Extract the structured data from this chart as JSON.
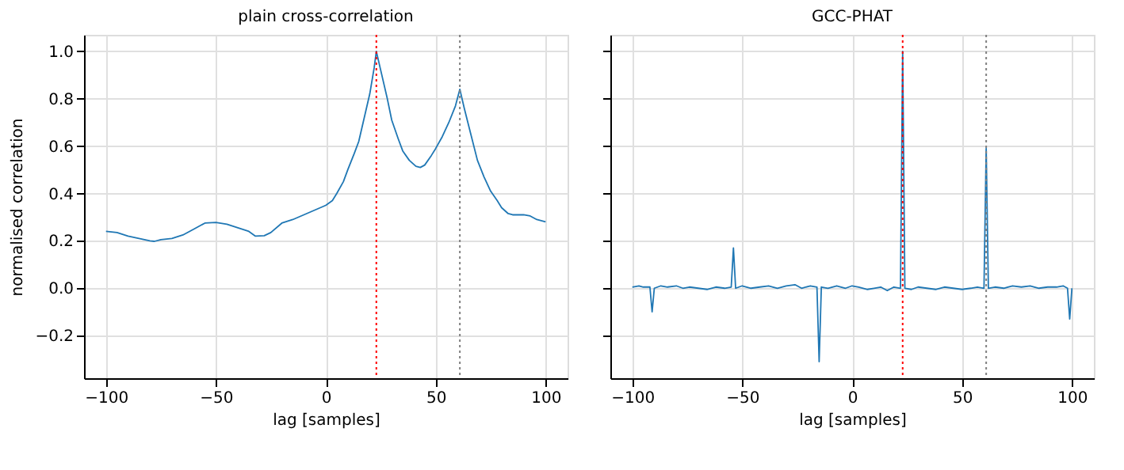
{
  "chart_data": [
    {
      "type": "line",
      "title": "plain cross-correlation",
      "xlabel": "lag [samples]",
      "ylabel": "normalised correlation",
      "series": [
        {
          "color": "#1f77b4",
          "x": [
            -100,
            -95,
            -90,
            -85,
            -80,
            -78,
            -75,
            -70,
            -65,
            -60,
            -55,
            -50,
            -45,
            -40,
            -35,
            -32,
            -28,
            -25,
            -20,
            -15,
            -10,
            -5,
            0,
            3,
            5,
            8,
            10,
            13,
            15,
            18,
            20,
            22,
            23,
            25,
            28,
            30,
            33,
            35,
            38,
            41,
            43,
            45,
            48,
            50,
            53,
            56,
            59,
            61,
            63,
            66,
            69,
            72,
            75,
            78,
            80,
            83,
            85,
            90,
            93,
            96,
            100
          ],
          "values": [
            0.24,
            0.235,
            0.22,
            0.21,
            0.2,
            0.198,
            0.205,
            0.21,
            0.225,
            0.25,
            0.275,
            0.278,
            0.27,
            0.255,
            0.24,
            0.22,
            0.222,
            0.235,
            0.275,
            0.29,
            0.31,
            0.33,
            0.35,
            0.37,
            0.4,
            0.45,
            0.5,
            0.57,
            0.62,
            0.74,
            0.82,
            0.93,
            1.0,
            0.92,
            0.8,
            0.71,
            0.63,
            0.58,
            0.54,
            0.515,
            0.51,
            0.52,
            0.56,
            0.59,
            0.64,
            0.7,
            0.77,
            0.84,
            0.76,
            0.65,
            0.54,
            0.47,
            0.41,
            0.37,
            0.34,
            0.315,
            0.31,
            0.31,
            0.305,
            0.29,
            0.28
          ]
        }
      ],
      "xlim": [
        -110,
        110
      ],
      "ylim": [
        -0.38,
        1.07
      ],
      "xticks": [
        -100,
        -50,
        0,
        50,
        100
      ],
      "yticks": [
        {
          "value": -0.2,
          "label": "−0.2"
        },
        {
          "value": 0,
          "label": "0.0"
        },
        {
          "value": 0.2,
          "label": "0.2"
        },
        {
          "value": 0.4,
          "label": "0.4"
        },
        {
          "value": 0.6,
          "label": "0.6"
        },
        {
          "value": 0.8,
          "label": "0.8"
        },
        {
          "value": 1.0,
          "label": "1.0"
        }
      ],
      "ref_lines": [
        {
          "axis": "x",
          "value": 23,
          "color": "#ff0000",
          "line_style": "dotted"
        },
        {
          "axis": "x",
          "value": 61,
          "color": "#808080",
          "line_style": "dotted"
        }
      ],
      "grid": true,
      "marker": "none",
      "line_style": "solid"
    },
    {
      "type": "line",
      "title": "GCC-PHAT",
      "xlabel": "lag [samples]",
      "series": [
        {
          "color": "#1f77b4",
          "x": [
            -100,
            -97,
            -95,
            -92,
            -91,
            -90,
            -87,
            -84,
            -80,
            -77,
            -74,
            -70,
            -66,
            -62,
            -58,
            -55,
            -54,
            -53,
            -50,
            -46,
            -42,
            -38,
            -34,
            -30,
            -26,
            -23,
            -19,
            -16,
            -15,
            -14,
            -11,
            -7,
            -3,
            0,
            3,
            7,
            10,
            13,
            16,
            19,
            22,
            23,
            24,
            27,
            30,
            34,
            38,
            42,
            46,
            50,
            54,
            57,
            60,
            61,
            62,
            65,
            69,
            73,
            77,
            81,
            85,
            89,
            93,
            96,
            98,
            99,
            100
          ],
          "values": [
            0.005,
            0.01,
            0.005,
            0.005,
            -0.1,
            0.0,
            0.01,
            0.005,
            0.01,
            0.0,
            0.005,
            0.0,
            -0.005,
            0.005,
            0.0,
            0.005,
            0.17,
            0.0,
            0.01,
            0.0,
            0.005,
            0.01,
            0.0,
            0.01,
            0.015,
            0.0,
            0.01,
            0.005,
            -0.31,
            0.005,
            0.0,
            0.01,
            0.0,
            0.01,
            0.005,
            -0.005,
            0.0,
            0.005,
            -0.01,
            0.005,
            0.0,
            1.0,
            0.0,
            -0.005,
            0.005,
            0.0,
            -0.005,
            0.005,
            0.0,
            -0.005,
            0.0,
            0.005,
            0.0,
            0.59,
            0.0,
            0.005,
            0.0,
            0.01,
            0.005,
            0.01,
            0.0,
            0.005,
            0.005,
            0.01,
            0.0,
            -0.13,
            0.0
          ]
        }
      ],
      "xlim": [
        -110,
        110
      ],
      "ylim": [
        -0.38,
        1.07
      ],
      "xticks": [
        -100,
        -50,
        0,
        50,
        100
      ],
      "yticks": [
        {
          "value": -0.2,
          "label": null
        },
        {
          "value": 0,
          "label": null
        },
        {
          "value": 0.2,
          "label": null
        },
        {
          "value": 0.4,
          "label": null
        },
        {
          "value": 0.6,
          "label": null
        },
        {
          "value": 0.8,
          "label": null
        },
        {
          "value": 1.0,
          "label": null
        }
      ],
      "tick_labels": "x",
      "ref_lines": [
        {
          "axis": "x",
          "value": 23,
          "color": "#ff0000",
          "line_style": "dotted"
        },
        {
          "axis": "x",
          "value": 61,
          "color": "#808080",
          "line_style": "dotted"
        }
      ],
      "grid": true,
      "marker": "none",
      "line_style": "solid"
    }
  ]
}
